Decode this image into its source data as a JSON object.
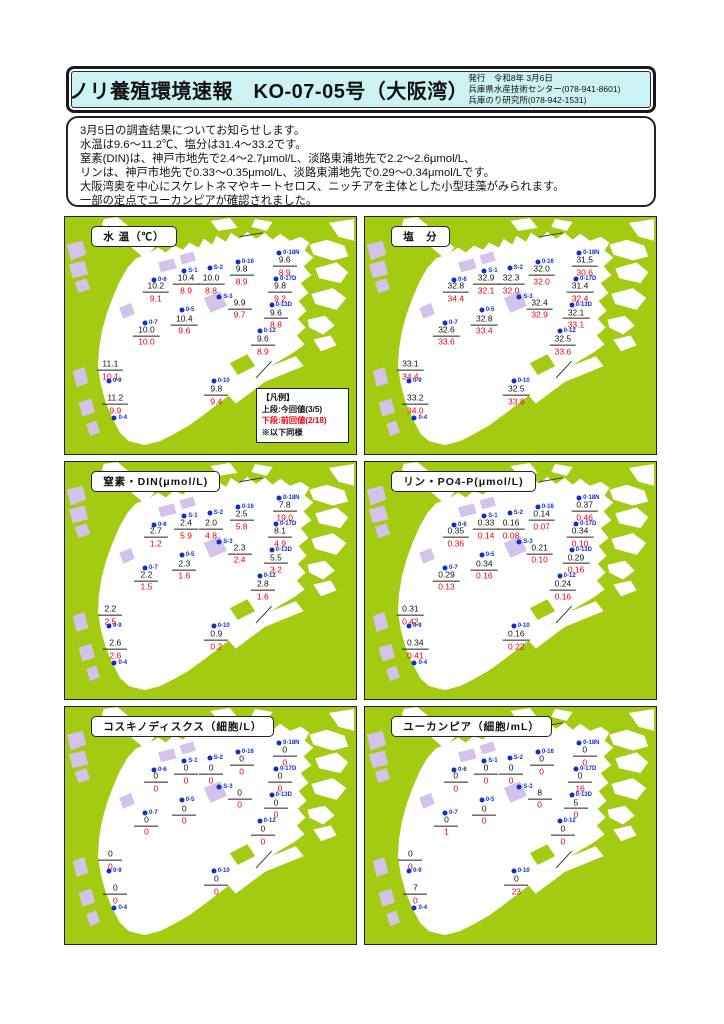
{
  "header": {
    "title": "ノリ養殖環境速報　KO-07-05号（大阪湾）",
    "issuer_line1": "発行　令和8年 3月6日",
    "issuer_line2": "兵庫県水産技術センター(078-941-8601)",
    "issuer_line3": "兵庫のり研究所(078-942-1531)"
  },
  "summary": {
    "lines": [
      "3月5日の調査結果についてお知らせします。",
      "水温は9.6～11.2℃、塩分は31.4～33.2です。",
      "窒素(DIN)は、神戸市地先で2.4～2.7μmol/L、淡路東浦地先で2.2～2.6μmol/L、",
      "リンは、神戸市地先で0.33～0.35μmol/L、淡路東浦地先で0.29～0.34μmol/Lです。",
      "大阪湾奥を中心にスケレトネマやキートセロス、ニッチアを主体とした小型珪藻がみられます。",
      "一部の定点でユーカンピアが確認されました。"
    ]
  },
  "legend": {
    "heading": "【凡例】",
    "upper": "上段:今回値(3/5)",
    "lower": "下段:前回値(2/18)",
    "note": "※以下同様"
  },
  "stations": [
    {
      "id": "0-18N",
      "dot": [
        73.6,
        15.1
      ],
      "val": [
        75.5,
        20.0
      ]
    },
    {
      "id": "0-16",
      "dot": [
        59.4,
        18.9
      ],
      "val": [
        60.7,
        23.6
      ]
    },
    {
      "id": "S-1",
      "dot": [
        41.0,
        22.8
      ],
      "val": [
        41.6,
        27.5
      ]
    },
    {
      "id": "S-2",
      "dot": [
        49.7,
        21.7
      ],
      "val": [
        50.2,
        27.5
      ]
    },
    {
      "id": "0-6",
      "dot": [
        30.6,
        26.4
      ],
      "val": [
        31.2,
        31.0
      ]
    },
    {
      "id": "0-17D",
      "dot": [
        72.5,
        26.3
      ],
      "val": [
        73.9,
        31.0
      ]
    },
    {
      "id": "S-3",
      "dot": [
        53.0,
        33.8
      ],
      "val": [
        60.0,
        37.8
      ]
    },
    {
      "id": "0-13D",
      "dot": [
        71.0,
        37.3
      ],
      "val": [
        72.5,
        42.0
      ]
    },
    {
      "id": "0-5",
      "dot": [
        40.1,
        39.4
      ],
      "val": [
        41.0,
        44.6
      ]
    },
    {
      "id": "0-7",
      "dot": [
        27.5,
        44.6
      ],
      "val": [
        28.0,
        49.2
      ]
    },
    {
      "id": "0-12",
      "dot": [
        66.9,
        48.3
      ],
      "val": [
        68.0,
        53.1
      ]
    },
    {
      "id": "0-9",
      "dot": [
        15.1,
        69.1
      ],
      "val": [
        15.6,
        63.8
      ]
    },
    {
      "id": "0-10",
      "dot": [
        51.1,
        69.1
      ],
      "val": [
        52.0,
        74.4
      ]
    },
    {
      "id": "0-4",
      "dot": [
        17.0,
        84.6
      ],
      "val": [
        17.3,
        78.0
      ]
    }
  ],
  "maps": [
    {
      "title": "水 温（℃）",
      "show_legend": true,
      "current": [
        "9.6",
        "9.8",
        "10.4",
        "10.0",
        "10.2",
        "9.8",
        "9.9",
        "9.6",
        "10.4",
        "10.0",
        "9.6",
        "11.1",
        "9.8",
        "11.2"
      ],
      "previous": [
        "8.9",
        "8.9",
        "8.9",
        "8.8",
        "9.1",
        "9.2",
        "9.7",
        "8.8",
        "9.6",
        "10.0",
        "8.9",
        "10.1",
        "9.4",
        "9.9"
      ]
    },
    {
      "title": "塩　分",
      "show_legend": false,
      "current": [
        "31.5",
        "32.0",
        "32.9",
        "32.3",
        "32.8",
        "31.4",
        "32.4",
        "32.1",
        "32.8",
        "32.6",
        "32.5",
        "33.1",
        "32.5",
        "33.2"
      ],
      "previous": [
        "30.6",
        "32.0",
        "32.1",
        "32.0",
        "34.4",
        "32.4",
        "32.9",
        "33.1",
        "33.4",
        "33.6",
        "33.6",
        "34.4",
        "33.8",
        "34.0"
      ]
    },
    {
      "title": "窒素・DIN(μmol/L)",
      "show_legend": false,
      "current": [
        "7.8",
        "2.5",
        "2.4",
        "2.0",
        "2.7",
        "8.1",
        "2.3",
        "5.5",
        "2.3",
        "2.2",
        "2.8",
        "2.2",
        "0.9",
        "2.6"
      ],
      "previous": [
        "19.0",
        "5.8",
        "5.9",
        "4.8",
        "1.2",
        "4.9",
        "2.4",
        "3.2",
        "1.6",
        "1.5",
        "1.6",
        "2.5",
        "0.2",
        "2.6"
      ]
    },
    {
      "title": "リン・PO4-P(μmol/L)",
      "show_legend": false,
      "current": [
        "0.37",
        "0.14",
        "0.33",
        "0.16",
        "0.35",
        "0.34",
        "0.21",
        "0.29",
        "0.34",
        "0.29",
        "0.24",
        "0.31",
        "0.16",
        "0.34"
      ],
      "previous": [
        "0.46",
        "0.07",
        "0.14",
        "0.08",
        "0.36",
        "0.10",
        "0.10",
        "0.16",
        "0.16",
        "0.13",
        "0.16",
        "0.42",
        "0.22",
        "0.41"
      ]
    },
    {
      "title": "コスキノディスクス（細胞/L）",
      "show_legend": false,
      "current": [
        "0",
        "0",
        "0",
        "0",
        "0",
        "0",
        "0",
        "0",
        "0",
        "0",
        "0",
        "0",
        "0",
        "0"
      ],
      "previous": [
        "0",
        "0",
        "0",
        "0",
        "0",
        "0",
        "0",
        "0",
        "0",
        "0",
        "0",
        "0",
        "0",
        "0"
      ]
    },
    {
      "title": "ユーカンピア（細胞/mL）",
      "show_legend": false,
      "current": [
        "0",
        "0",
        "0",
        "0",
        "0",
        "0",
        "8",
        "5",
        "0",
        "0",
        "0",
        "0",
        "0",
        "7"
      ],
      "previous": [
        "0",
        "0",
        "0",
        "0",
        "0",
        "16",
        "0",
        "0",
        "0",
        "1",
        "0",
        "0",
        "23",
        "0"
      ]
    }
  ],
  "colors": {
    "land": "#a3cb12",
    "sea": "#ffffff",
    "urban": "#d3c3ea",
    "dot_blue": "#0d2fd0",
    "prev_red": "#ee0010",
    "header_bg": "#cdf2f4"
  }
}
